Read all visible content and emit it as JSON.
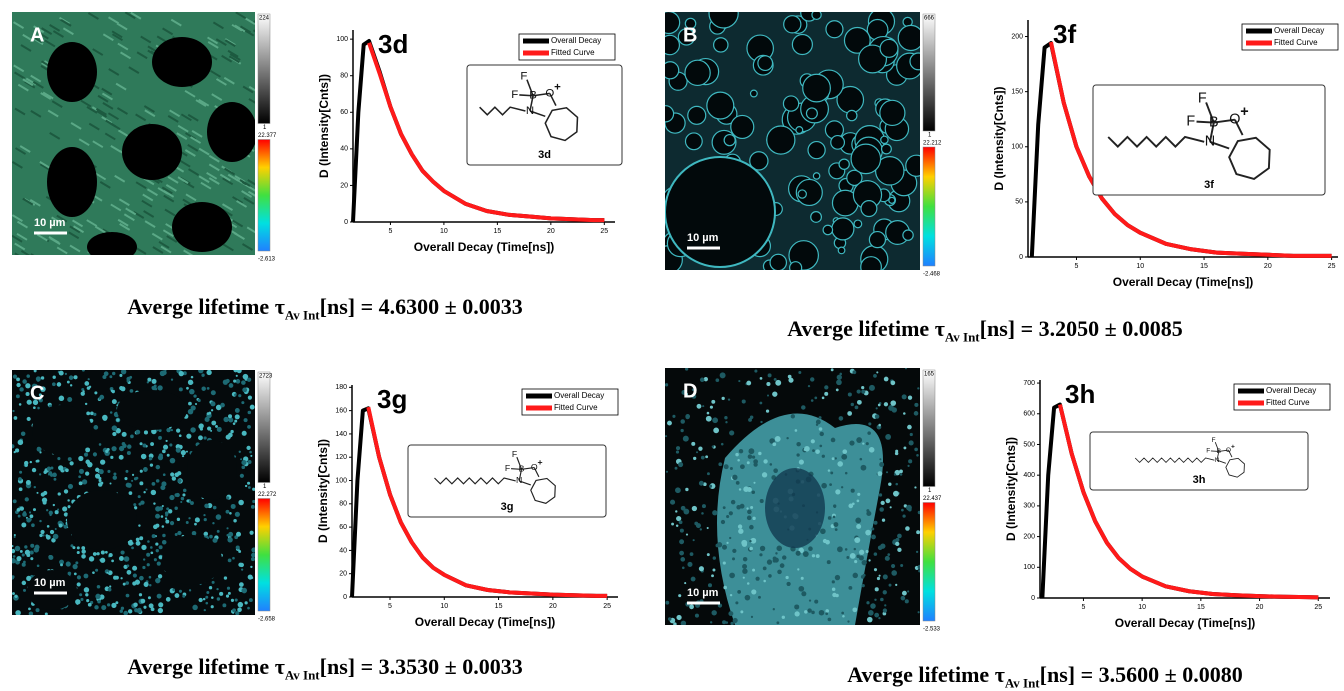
{
  "chart_data": [
    {
      "type": "line",
      "title": "3d",
      "x_label": "Overall Decay (Time[ns])",
      "y_label": "D (Intensity[Cnts])",
      "x": [
        1.5,
        2,
        2.5,
        3,
        4,
        5,
        6,
        7,
        8,
        9,
        10,
        12,
        14,
        16,
        18,
        20,
        22,
        24,
        25
      ],
      "series": [
        {
          "name": "Overall Decay",
          "color": "#000000",
          "values": [
            0,
            60,
            97,
            99,
            82,
            63,
            48,
            37,
            28,
            22,
            17,
            10,
            6,
            4,
            3,
            2,
            1.5,
            1,
            1
          ]
        },
        {
          "name": "Fitted Curve",
          "color": "#ff1a1a",
          "values": [
            null,
            null,
            null,
            98,
            81,
            63,
            48,
            37,
            28,
            22,
            17,
            10,
            6,
            4,
            3,
            2,
            1.5,
            1,
            1
          ]
        }
      ],
      "xlim": [
        1.5,
        26
      ],
      "xticks": [
        5,
        10,
        15,
        20,
        25
      ],
      "ylim": [
        0,
        105
      ],
      "yticks": [
        0,
        20,
        40,
        60,
        80,
        100
      ],
      "structure": {
        "atoms": [
          "F",
          "F",
          "B",
          "O",
          "+",
          "N"
        ],
        "label": "3d"
      }
    },
    {
      "type": "line",
      "title": "3f",
      "x_label": "Overall Decay (Time[ns])",
      "y_label": "D (Intensity[Cnts])",
      "x": [
        1.5,
        2,
        2.5,
        3,
        4,
        5,
        6,
        7,
        8,
        9,
        10,
        12,
        14,
        16,
        18,
        20,
        22,
        24,
        25
      ],
      "series": [
        {
          "name": "Overall Decay",
          "color": "#000000",
          "values": [
            0,
            120,
            190,
            194,
            140,
            100,
            73,
            53,
            39,
            29,
            22,
            12,
            7,
            4,
            3,
            2,
            1,
            1,
            1
          ]
        },
        {
          "name": "Fitted Curve",
          "color": "#ff1a1a",
          "values": [
            null,
            null,
            null,
            195,
            140,
            100,
            73,
            53,
            39,
            29,
            22,
            12,
            7,
            4,
            3,
            2,
            1,
            1,
            1
          ]
        }
      ],
      "xlim": [
        1.2,
        25.5
      ],
      "xticks": [
        5,
        10,
        15,
        20,
        25
      ],
      "ylim": [
        0,
        215
      ],
      "yticks": [
        0,
        50,
        100,
        150,
        200
      ],
      "structure": {
        "atoms": [
          "F",
          "F",
          "B",
          "O",
          "+",
          "N"
        ],
        "label": "3f"
      }
    },
    {
      "type": "line",
      "title": "3g",
      "x_label": "Overall Decay (Time[ns])",
      "y_label": "D (Intensity[Cnts])",
      "x": [
        1.5,
        2,
        2.5,
        3,
        4,
        5,
        6,
        7,
        8,
        9,
        10,
        12,
        14,
        16,
        18,
        20,
        22,
        24,
        25
      ],
      "series": [
        {
          "name": "Overall Decay",
          "color": "#000000",
          "values": [
            0,
            100,
            160,
            162,
            120,
            88,
            64,
            47,
            34,
            25,
            19,
            10,
            6,
            4,
            3,
            2,
            1.5,
            1,
            1
          ]
        },
        {
          "name": "Fitted Curve",
          "color": "#ff1a1a",
          "values": [
            null,
            null,
            null,
            163,
            120,
            88,
            64,
            47,
            34,
            25,
            19,
            10,
            6,
            4,
            3,
            2,
            1.5,
            1,
            1
          ]
        }
      ],
      "xlim": [
        1.5,
        26
      ],
      "xticks": [
        5,
        10,
        15,
        20,
        25
      ],
      "ylim": [
        0,
        182
      ],
      "yticks": [
        0,
        20,
        40,
        60,
        80,
        100,
        120,
        140,
        160,
        180
      ],
      "structure": {
        "atoms": [
          "F",
          "F",
          "B",
          "O",
          "+",
          "N"
        ],
        "label": "3g"
      }
    },
    {
      "type": "line",
      "title": "3h",
      "x_label": "Overall Decay (Time[ns])",
      "y_label": "D (Intensity[Cnts])",
      "x": [
        1.5,
        2,
        2.5,
        3,
        4,
        5,
        6,
        7,
        8,
        9,
        10,
        12,
        14,
        16,
        18,
        20,
        22,
        24,
        25
      ],
      "series": [
        {
          "name": "Overall Decay",
          "color": "#000000",
          "values": [
            0,
            400,
            620,
            630,
            470,
            345,
            250,
            180,
            130,
            95,
            70,
            38,
            22,
            13,
            9,
            6,
            4,
            3,
            2
          ]
        },
        {
          "name": "Fitted Curve",
          "color": "#ff1a1a",
          "values": [
            null,
            null,
            null,
            630,
            470,
            345,
            250,
            180,
            130,
            95,
            70,
            38,
            22,
            13,
            9,
            6,
            4,
            3,
            2
          ]
        }
      ],
      "xlim": [
        1.3,
        26
      ],
      "xticks": [
        5,
        10,
        15,
        20,
        25
      ],
      "ylim": [
        0,
        710
      ],
      "yticks": [
        0,
        100,
        200,
        300,
        400,
        500,
        600,
        700
      ],
      "structure": {
        "atoms": [
          "F",
          "F",
          "B",
          "O",
          "+",
          "N"
        ],
        "label": "3h"
      }
    }
  ],
  "panels": [
    {
      "letter": "A",
      "scale_bar": "10 µm",
      "intensity_bar": [
        224,
        1
      ],
      "lifetime_bar": [
        22.377,
        -2.613
      ],
      "caption": {
        "text": "Averge lifetime τ",
        "sub": "Av Int",
        "rest": "[ns] = 4.6300 ± 0.0033"
      }
    },
    {
      "letter": "B",
      "scale_bar": "10 µm",
      "intensity_bar": [
        666,
        1
      ],
      "lifetime_bar": [
        22.212,
        -2.468
      ],
      "caption": {
        "text": "Averge lifetime τ",
        "sub": "Av Int",
        "rest": "[ns] = 3.2050 ± 0.0085"
      }
    },
    {
      "letter": "C",
      "scale_bar": "10 µm",
      "intensity_bar": [
        2723,
        1
      ],
      "lifetime_bar": [
        22.272,
        -2.658
      ],
      "caption": {
        "text": "Averge lifetime τ",
        "sub": "Av Int",
        "rest": "[ns] = 3.3530 ± 0.0033"
      }
    },
    {
      "letter": "D",
      "scale_bar": "10 µm",
      "intensity_bar": [
        165,
        1
      ],
      "lifetime_bar": [
        22.437,
        -2.533
      ],
      "caption": {
        "text": "Averge lifetime τ",
        "sub": "Av Int",
        "rest": "[ns] = 3.5600 ± 0.0080"
      }
    }
  ]
}
